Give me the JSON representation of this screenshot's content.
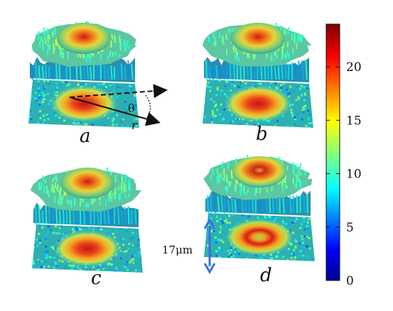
{
  "figure": {
    "panels": [
      {
        "label": "a",
        "ring_strength": 0.0
      },
      {
        "label": "b",
        "ring_strength": 0.2
      },
      {
        "label": "c",
        "ring_strength": 0.35
      },
      {
        "label": "d",
        "ring_strength": 1.0
      }
    ],
    "annotations": {
      "angle": "θ",
      "radius": "r",
      "scale_bar": "17μm"
    },
    "colorbar": {
      "min": 0,
      "max": 24,
      "ticks": [
        "0",
        "5",
        "10",
        "15",
        "20"
      ],
      "tick_values": [
        0,
        5,
        10,
        15,
        20
      ],
      "colormap": "jet"
    },
    "colors": {
      "arrow_blue": "#3b6fe0",
      "annotation_black": "#111111"
    }
  }
}
